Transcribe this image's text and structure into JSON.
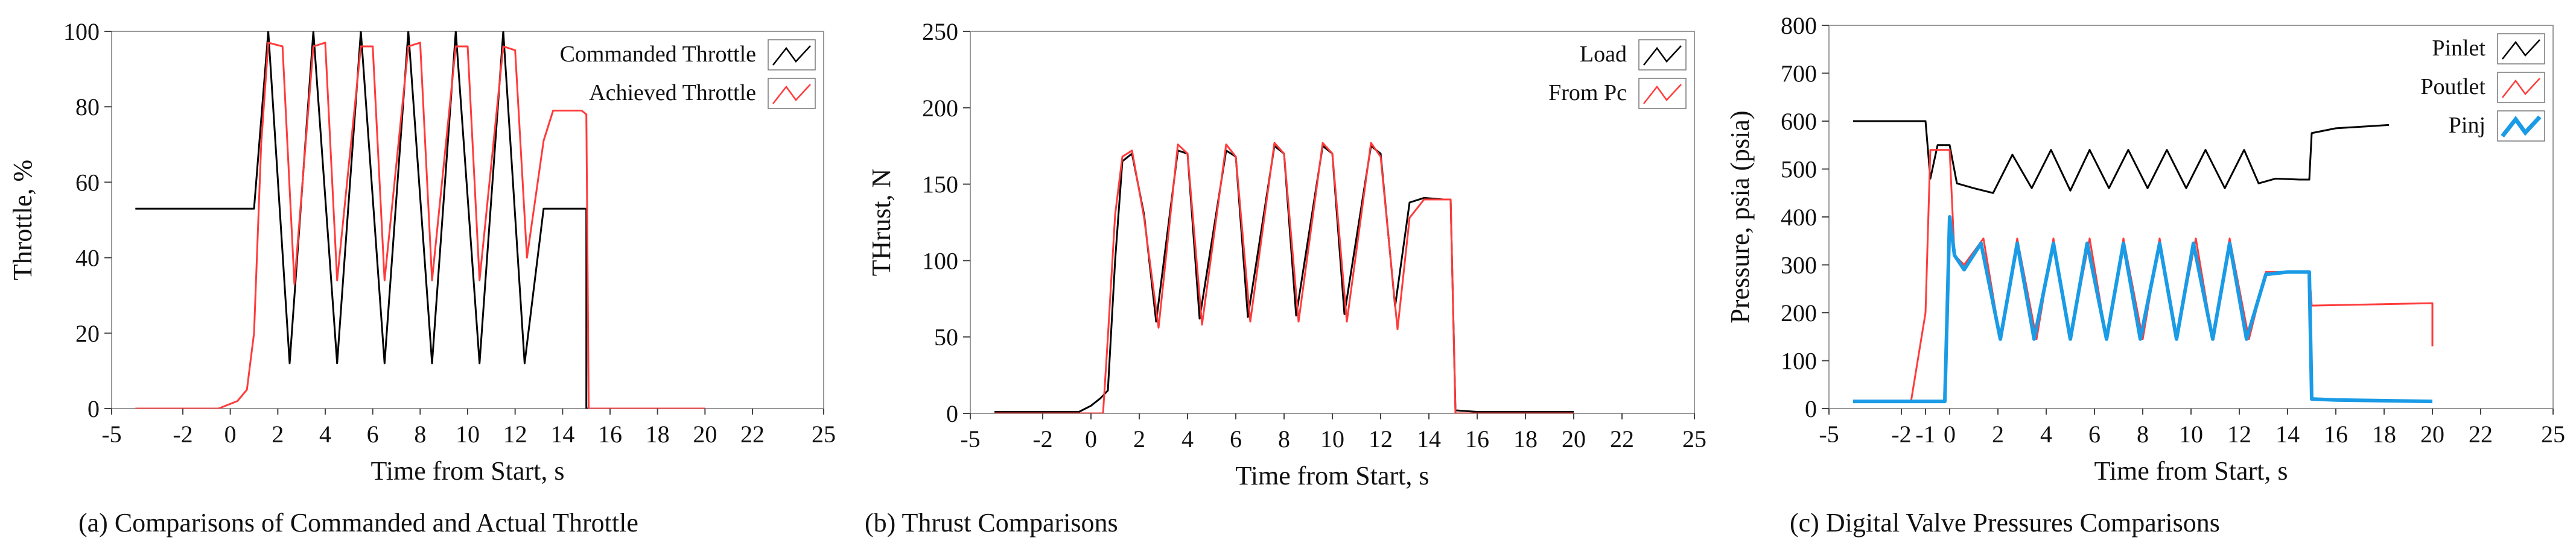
{
  "colors": {
    "black_series": "#000000",
    "red_series": "#ff3b3b",
    "blue_series": "#1a9be6",
    "frame": "#9a9a9a",
    "background": "#ffffff"
  },
  "chart_data": [
    {
      "id": "a",
      "type": "line",
      "caption": "(a) Comparisons of Commanded and Actual Throttle",
      "xlabel": "Time from  Start, s",
      "ylabel": "Throttle, %",
      "xlim": [
        -5,
        25
      ],
      "ylim": [
        0,
        100
      ],
      "xticks": [
        -5,
        -2,
        0,
        2,
        4,
        6,
        8,
        10,
        12,
        14,
        16,
        18,
        20,
        22,
        25
      ],
      "yticks": [
        0,
        20,
        40,
        60,
        80,
        100
      ],
      "legend_position": "top-right",
      "series": [
        {
          "name": "Commanded Throttle",
          "color": "#000000",
          "x": [
            -4,
            1,
            1.6,
            2.5,
            3.5,
            4.5,
            5.5,
            6.5,
            7.5,
            8.5,
            9.5,
            10.5,
            11.5,
            12.4,
            13.2,
            15,
            15,
            20
          ],
          "y": [
            53,
            53,
            100,
            12,
            100,
            12,
            100,
            12,
            100,
            12,
            100,
            12,
            100,
            12,
            53,
            53,
            0,
            0
          ]
        },
        {
          "name": "Achieved Throttle",
          "color": "#ff3b3b",
          "x": [
            -4,
            -0.5,
            0.3,
            0.7,
            1,
            1.3,
            1.6,
            2.2,
            2.7,
            3.5,
            4.0,
            4.5,
            5.5,
            6.0,
            6.5,
            7.5,
            8.0,
            8.5,
            9.5,
            10.0,
            10.5,
            11.5,
            12.0,
            12.5,
            13.2,
            13.6,
            14.0,
            14.8,
            15.0,
            15.1,
            20
          ],
          "y": [
            0,
            0,
            2,
            5,
            20,
            70,
            97,
            96,
            33,
            96,
            97,
            34,
            96,
            96,
            34,
            96,
            97,
            34,
            96,
            96,
            34,
            96,
            95,
            40,
            71,
            79,
            79,
            79,
            78,
            0,
            0
          ]
        }
      ]
    },
    {
      "id": "b",
      "type": "line",
      "caption": "(b) Thrust Comparisons",
      "xlabel": "Time from  Start, s",
      "ylabel": "THrust, N",
      "xlim": [
        -5,
        25
      ],
      "ylim": [
        0,
        250
      ],
      "xticks": [
        -5,
        -2,
        0,
        2,
        4,
        6,
        8,
        10,
        12,
        14,
        16,
        18,
        20,
        22,
        25
      ],
      "yticks": [
        0,
        50,
        100,
        150,
        200,
        250
      ],
      "legend_position": "top-right",
      "series": [
        {
          "name": "Load",
          "color": "#000000",
          "x": [
            -4,
            -0.5,
            0,
            0.4,
            0.7,
            1.0,
            1.3,
            1.7,
            2.2,
            2.7,
            3.6,
            4.0,
            4.5,
            5.6,
            6.0,
            6.5,
            7.6,
            8.0,
            8.5,
            9.6,
            10.0,
            10.5,
            11.6,
            12.0,
            12.6,
            13.2,
            13.8,
            14.6,
            14.9,
            15.1,
            16,
            20
          ],
          "y": [
            1,
            1,
            5,
            10,
            15,
            100,
            165,
            170,
            130,
            60,
            172,
            170,
            62,
            172,
            168,
            63,
            175,
            170,
            64,
            175,
            170,
            65,
            175,
            170,
            70,
            138,
            141,
            140,
            140,
            2,
            1,
            1
          ],
          "style": "black-line"
        },
        {
          "name": "From Pc",
          "color": "#ff3b3b",
          "x": [
            -4,
            0.5,
            0.7,
            1.0,
            1.3,
            1.7,
            2.2,
            2.8,
            3.6,
            4.0,
            4.6,
            5.6,
            6.0,
            6.6,
            7.6,
            8.0,
            8.6,
            9.6,
            10.0,
            10.6,
            11.6,
            12.0,
            12.7,
            13.2,
            13.8,
            14.6,
            14.9,
            15.1,
            20
          ],
          "y": [
            0,
            0,
            50,
            130,
            168,
            172,
            128,
            56,
            176,
            170,
            58,
            176,
            168,
            60,
            177,
            170,
            60,
            177,
            170,
            60,
            177,
            168,
            55,
            128,
            140,
            140,
            140,
            0,
            0
          ]
        }
      ]
    },
    {
      "id": "c",
      "type": "line",
      "caption": "(c) Digital Valve Pressures Comparisons",
      "xlabel": "Time from  Start, s",
      "ylabel": "Pressure, psia (psia)",
      "xlim": [
        -5,
        25
      ],
      "ylim": [
        0,
        800
      ],
      "xticks": [
        -5,
        -2,
        -1,
        0,
        2,
        4,
        6,
        8,
        10,
        12,
        14,
        16,
        18,
        20,
        22,
        25
      ],
      "yticks": [
        0,
        100,
        200,
        300,
        400,
        500,
        600,
        700,
        800
      ],
      "legend_position": "top-right",
      "series": [
        {
          "name": "Pinlet",
          "color": "#000000",
          "x": [
            -4,
            -1,
            -0.8,
            -0.5,
            0,
            0.3,
            1.0,
            1.8,
            2.6,
            3.4,
            4.2,
            5.0,
            5.8,
            6.6,
            7.4,
            8.2,
            9.0,
            9.8,
            10.6,
            11.4,
            12.2,
            12.8,
            13.5,
            14.5,
            14.9,
            15.0,
            16,
            18.2
          ],
          "y": [
            600,
            600,
            480,
            550,
            550,
            470,
            460,
            450,
            530,
            460,
            540,
            455,
            540,
            460,
            540,
            460,
            540,
            460,
            540,
            460,
            540,
            470,
            480,
            478,
            478,
            575,
            585,
            592
          ]
        },
        {
          "name": "Poutlet",
          "color": "#ff3b3b",
          "x": [
            -4,
            -1.6,
            -1.0,
            -0.8,
            0,
            0.2,
            0.6,
            1.4,
            2.1,
            2.8,
            3.6,
            4.3,
            5.0,
            5.8,
            6.5,
            7.2,
            8.0,
            8.7,
            9.4,
            10.2,
            10.9,
            11.6,
            12.4,
            13.1,
            14.0,
            14.9,
            15.0,
            20,
            20
          ],
          "y": [
            15,
            15,
            200,
            540,
            540,
            320,
            300,
            355,
            145,
            355,
            145,
            355,
            145,
            355,
            145,
            355,
            145,
            355,
            145,
            355,
            145,
            355,
            145,
            285,
            285,
            285,
            215,
            220,
            130
          ]
        },
        {
          "name": "Pinj",
          "color": "#1a9be6",
          "x": [
            -4,
            -0.2,
            0,
            0.2,
            0.6,
            1.3,
            2.1,
            2.8,
            3.5,
            4.3,
            5.0,
            5.7,
            6.5,
            7.2,
            7.9,
            8.7,
            9.4,
            10.1,
            10.9,
            11.6,
            12.3,
            13.1,
            14.0,
            14.9,
            15.0,
            16,
            20
          ],
          "y": [
            15,
            15,
            400,
            320,
            290,
            345,
            145,
            345,
            145,
            345,
            145,
            345,
            145,
            345,
            145,
            345,
            145,
            345,
            145,
            345,
            145,
            280,
            285,
            285,
            20,
            18,
            15
          ]
        }
      ]
    }
  ]
}
